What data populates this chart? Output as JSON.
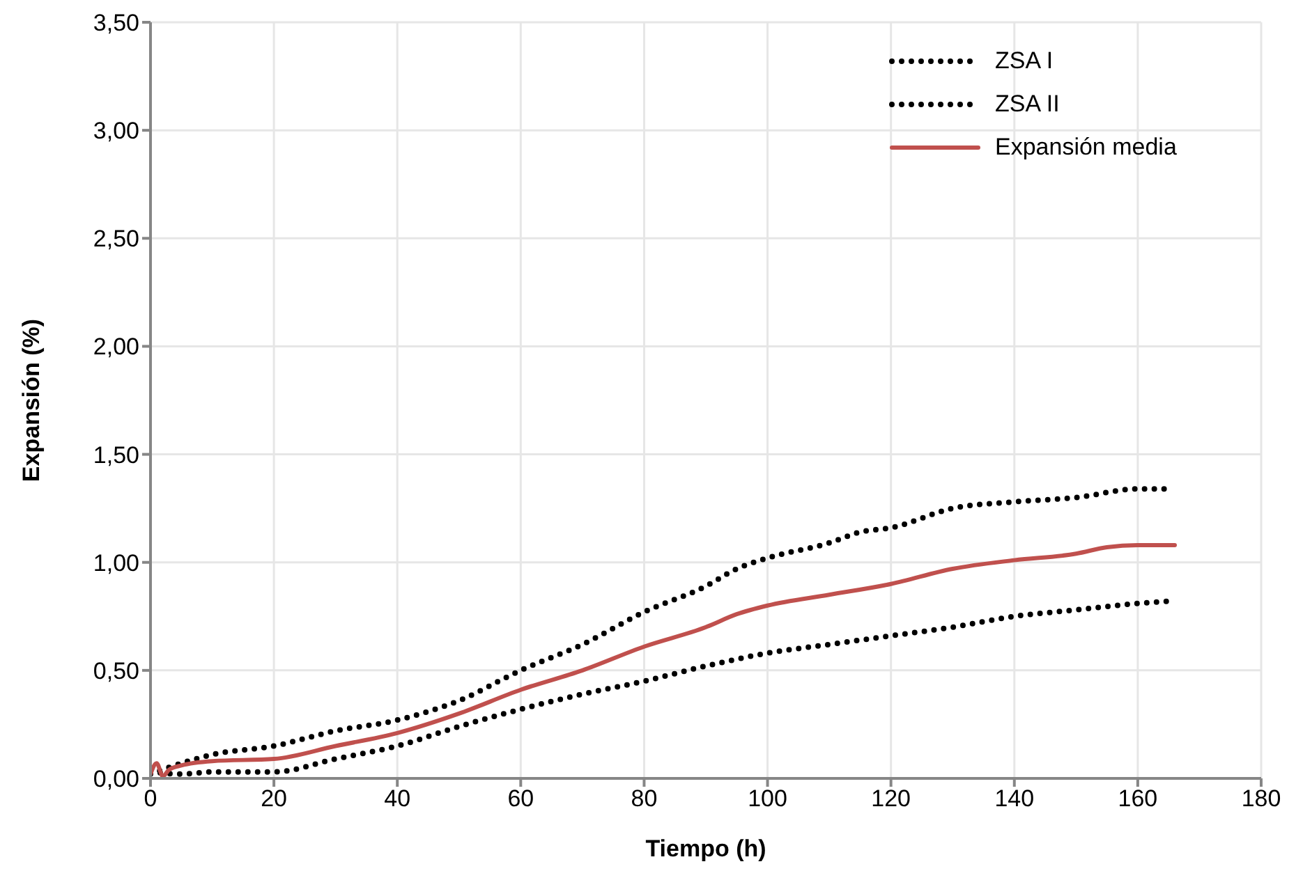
{
  "chart_data": {
    "type": "line",
    "xlabel": "Tiempo (h)",
    "ylabel": "Expansión (%)",
    "xlim": [
      0,
      180
    ],
    "xticks": [
      0,
      20,
      40,
      60,
      80,
      100,
      120,
      140,
      160,
      180
    ],
    "ylim": [
      0,
      3.5
    ],
    "yticks": [
      {
        "value": 0,
        "label": "0,00"
      },
      {
        "value": 0.5,
        "label": "0,50"
      },
      {
        "value": 1,
        "label": "1,00"
      },
      {
        "value": 1.5,
        "label": "1,50"
      },
      {
        "value": 2,
        "label": "2,00"
      },
      {
        "value": 2.5,
        "label": "2,50"
      },
      {
        "value": 3,
        "label": "3,00"
      },
      {
        "value": 3.5,
        "label": "3,50"
      }
    ],
    "grid": true,
    "legend": "top right",
    "marker": "none",
    "series": [
      {
        "name": "ZSA I",
        "color": "#000000",
        "line_style": "dotted",
        "x": [
          0,
          5,
          10,
          20,
          30,
          40,
          50,
          60,
          70,
          80,
          90,
          95,
          100,
          110,
          115,
          120,
          130,
          140,
          150,
          160,
          165
        ],
        "values": [
          0.02,
          0.07,
          0.11,
          0.15,
          0.22,
          0.27,
          0.36,
          0.5,
          0.62,
          0.77,
          0.89,
          0.97,
          1.02,
          1.09,
          1.14,
          1.16,
          1.25,
          1.28,
          1.3,
          1.34,
          1.34
        ]
      },
      {
        "name": "ZSA II",
        "color": "#000000",
        "line_style": "dotted",
        "x": [
          0,
          5,
          10,
          20,
          30,
          40,
          50,
          60,
          70,
          80,
          90,
          100,
          110,
          120,
          130,
          140,
          150,
          160,
          165
        ],
        "values": [
          0.03,
          0.02,
          0.03,
          0.03,
          0.09,
          0.15,
          0.24,
          0.32,
          0.39,
          0.45,
          0.52,
          0.58,
          0.62,
          0.66,
          0.7,
          0.75,
          0.78,
          0.81,
          0.82
        ]
      },
      {
        "name": "Expansión media",
        "color": "#c0504d",
        "line_style": "solid",
        "x": [
          0,
          1,
          2,
          3,
          5,
          10,
          20,
          30,
          40,
          50,
          60,
          70,
          80,
          90,
          95,
          100,
          110,
          120,
          130,
          140,
          150,
          155,
          160,
          166
        ],
        "values": [
          0.02,
          0.07,
          0.01,
          0.04,
          0.06,
          0.08,
          0.09,
          0.15,
          0.21,
          0.3,
          0.41,
          0.5,
          0.61,
          0.7,
          0.76,
          0.8,
          0.85,
          0.9,
          0.97,
          1.01,
          1.04,
          1.07,
          1.08,
          1.08
        ]
      }
    ]
  }
}
